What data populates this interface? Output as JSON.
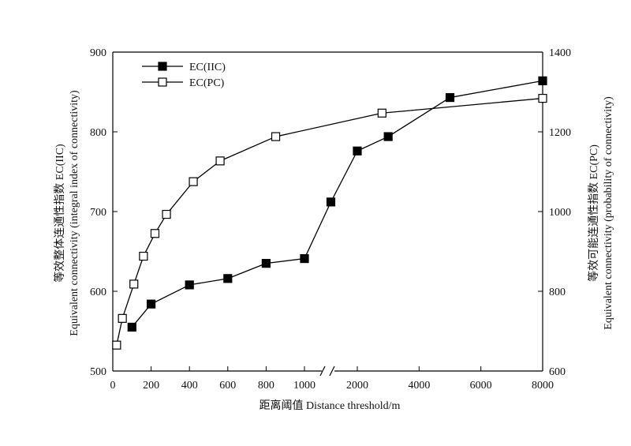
{
  "chart_data": {
    "type": "line",
    "xlabel": "距离阈值 Distance threshold/m",
    "ylabel_left_line1": "等效整体连通性指数 EC(IIC)",
    "ylabel_left_line2": "Equivalent connectivity (integral index of connectivity)",
    "ylabel_right_line1": "等效可能连通性指数 EC(PC)",
    "ylabel_right_line2": "Equivalent connectivity (probability of connectivity)",
    "x_axis": {
      "broken": true,
      "segment_1_range": [
        0,
        1100
      ],
      "segment_1_ticks": [
        "0",
        "200",
        "400",
        "600",
        "800",
        "1000"
      ],
      "segment_2_range": [
        1000,
        8000
      ],
      "segment_2_ticks": [
        "2000",
        "4000",
        "6000",
        "8000"
      ]
    },
    "ylim_left": [
      500,
      900
    ],
    "yticks_left": [
      "500",
      "600",
      "700",
      "800",
      "900"
    ],
    "ylim_right": [
      600,
      1400
    ],
    "yticks_right": [
      "600",
      "800",
      "1000",
      "1200",
      "1400"
    ],
    "legend_position": "top-left",
    "series": [
      {
        "name": "EC(IIC)",
        "axis": "left",
        "marker": "filled-square",
        "points": [
          {
            "x": 100,
            "y": 555
          },
          {
            "x": 200,
            "y": 584
          },
          {
            "x": 400,
            "y": 608
          },
          {
            "x": 600,
            "y": 616
          },
          {
            "x": 800,
            "y": 635
          },
          {
            "x": 1000,
            "y": 641
          },
          {
            "x": 1500,
            "y": 712
          },
          {
            "x": 2000,
            "y": 776
          },
          {
            "x": 3000,
            "y": 794
          },
          {
            "x": 5000,
            "y": 843
          },
          {
            "x": 8000,
            "y": 864
          }
        ]
      },
      {
        "name": "EC(PC)",
        "axis": "right",
        "marker": "open-square",
        "points": [
          {
            "x": 20,
            "y": 665
          },
          {
            "x": 50,
            "y": 732
          },
          {
            "x": 110,
            "y": 818
          },
          {
            "x": 160,
            "y": 888
          },
          {
            "x": 220,
            "y": 945
          },
          {
            "x": 280,
            "y": 993
          },
          {
            "x": 420,
            "y": 1075
          },
          {
            "x": 560,
            "y": 1127
          },
          {
            "x": 850,
            "y": 1188
          },
          {
            "x": 2800,
            "y": 1247
          },
          {
            "x": 8000,
            "y": 1284
          }
        ]
      }
    ]
  }
}
